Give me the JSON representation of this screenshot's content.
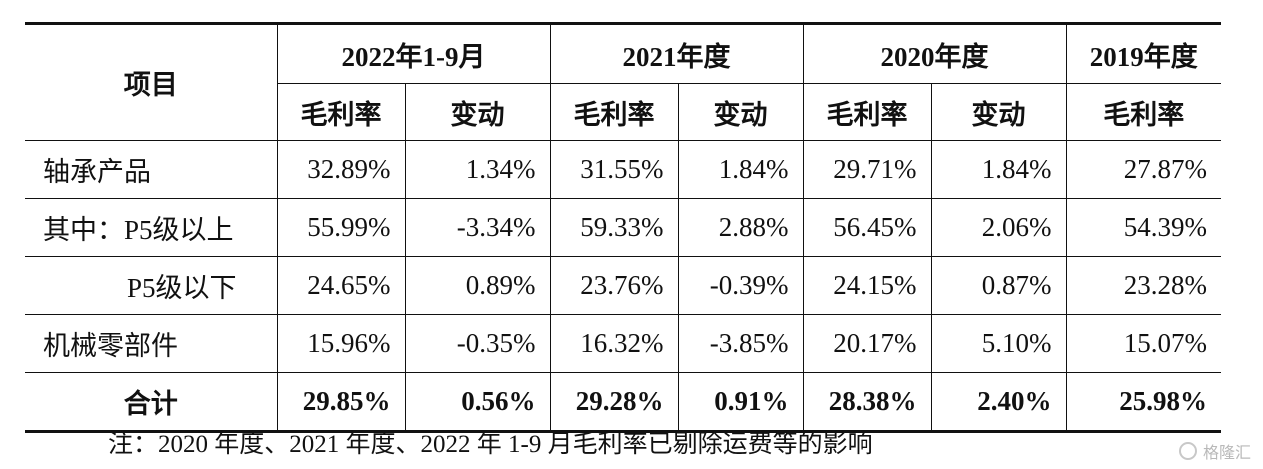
{
  "table": {
    "header_item": "项目",
    "periods": [
      "2022年1-9月",
      "2021年度",
      "2020年度",
      "2019年度"
    ],
    "sub_gross": "毛利率",
    "sub_change": "变动",
    "rows": [
      {
        "label": "轴承产品",
        "v": [
          "32.89%",
          "1.34%",
          "31.55%",
          "1.84%",
          "29.71%",
          "1.84%",
          "27.87%"
        ]
      },
      {
        "label": "其中：P5级以上",
        "v": [
          "55.99%",
          "-3.34%",
          "59.33%",
          "2.88%",
          "56.45%",
          "2.06%",
          "54.39%"
        ]
      },
      {
        "label": "P5级以下",
        "v": [
          "24.65%",
          "0.89%",
          "23.76%",
          "-0.39%",
          "24.15%",
          "0.87%",
          "23.28%"
        ]
      },
      {
        "label": "机械零部件",
        "v": [
          "15.96%",
          "-0.35%",
          "16.32%",
          "-3.85%",
          "20.17%",
          "5.10%",
          "15.07%"
        ]
      }
    ],
    "total": {
      "label": "合计",
      "v": [
        "29.85%",
        "0.56%",
        "29.28%",
        "0.91%",
        "28.38%",
        "2.40%",
        "25.98%"
      ]
    }
  },
  "footnote": "注：2020 年度、2021 年度、2022 年 1-9 月毛利率已剔除运费等的影响",
  "watermark": "格隆汇"
}
